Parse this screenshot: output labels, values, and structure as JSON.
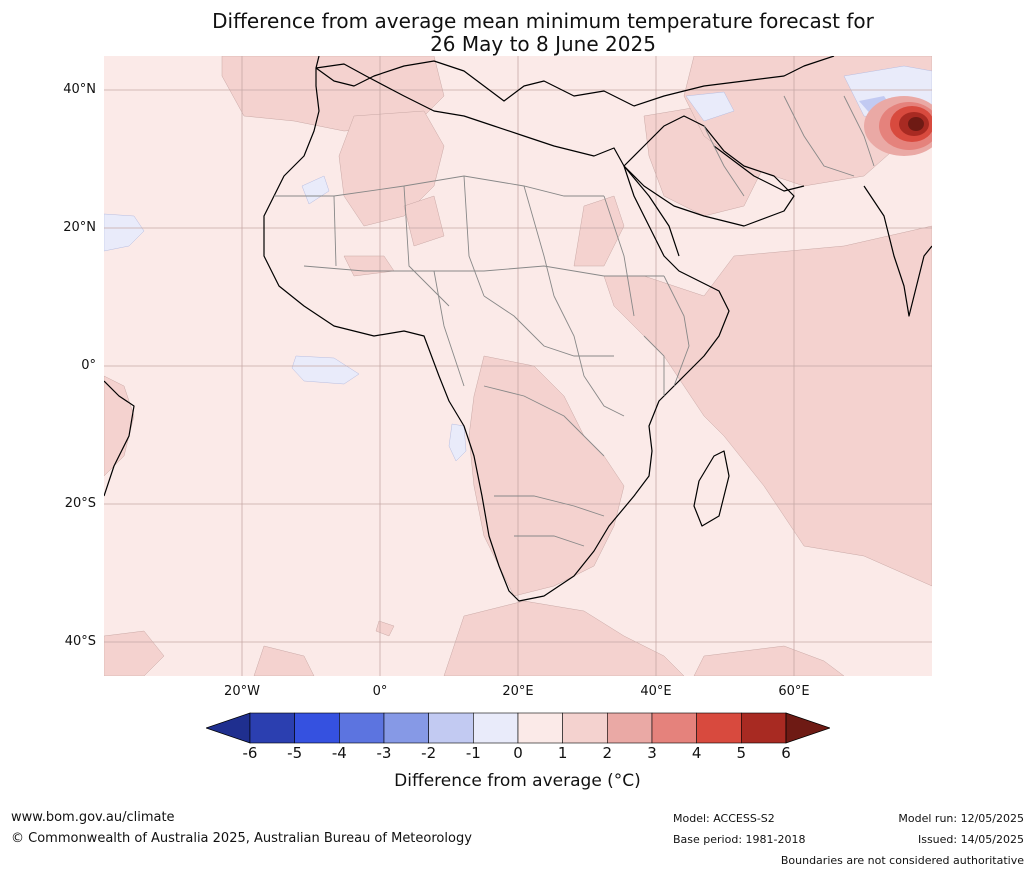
{
  "title_line1": "Difference from average mean minimum temperature forecast for",
  "title_line2": "26 May to 8 June 2025",
  "lat_labels": [
    "40°N",
    "20°N",
    "0°",
    "20°S",
    "40°S"
  ],
  "lon_labels": [
    "20°W",
    "0°",
    "20°E",
    "40°E",
    "60°E"
  ],
  "colorbar": {
    "ticks": [
      "-6",
      "-5",
      "-4",
      "-3",
      "-2",
      "-1",
      "0",
      "1",
      "2",
      "3",
      "4",
      "5",
      "6"
    ],
    "label": "Difference from average (°C)",
    "colors": [
      "#1f2f8f",
      "#2b3fb0",
      "#3551e0",
      "#5c74e0",
      "#8699e6",
      "#c2caf2",
      "#e9ebfa",
      "#fbeae8",
      "#f4d2cf",
      "#eaa9a5",
      "#e5827c",
      "#d84a3e",
      "#a82a22",
      "#6e1a14"
    ]
  },
  "footer": {
    "website": "www.bom.gov.au/climate",
    "copyright": "© Commonwealth of Australia 2025, Australian Bureau of Meteorology",
    "model": "Model: ACCESS-S2",
    "base_period": "Base period: 1981-2018",
    "model_run": "Model run: 12/05/2025",
    "issued": "Issued: 14/05/2025",
    "disclaimer": "Boundaries are not considered authoritative"
  }
}
